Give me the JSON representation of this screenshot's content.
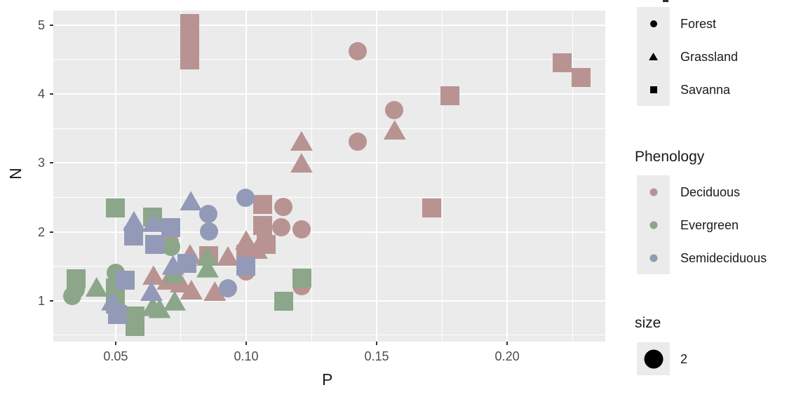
{
  "chart_data": {
    "type": "scatter",
    "title": "",
    "xlabel": "P",
    "ylabel": "N",
    "xlim": [
      0.0261,
      0.2376
    ],
    "ylim": [
      0.407,
      5.212
    ],
    "grid": true,
    "panel_bg": "#ebebeb",
    "grid_color": "#ffffff",
    "x_ticks": [
      {
        "value": 0.05,
        "label": "0.05"
      },
      {
        "value": 0.1,
        "label": "0.10"
      },
      {
        "value": 0.15,
        "label": "0.15"
      },
      {
        "value": 0.2,
        "label": "0.20"
      }
    ],
    "y_ticks": [
      {
        "value": 1,
        "label": "1"
      },
      {
        "value": 2,
        "label": "2"
      },
      {
        "value": 3,
        "label": "3"
      },
      {
        "value": 4,
        "label": "4"
      },
      {
        "value": 5,
        "label": "5"
      }
    ],
    "x_minor": [
      0.075,
      0.125,
      0.175,
      0.225
    ],
    "y_minor": [
      0.5,
      1.5,
      2.5,
      3.5,
      4.5
    ],
    "colors": {
      "Deciduous": "#b89392",
      "Evergreen": "#8ba689",
      "Semideciduous": "#939ab8",
      "legend_symbol": "#000000",
      "tick_text": "#4d4d4d",
      "text": "#1a1a1a"
    },
    "shape_legend": {
      "items": [
        {
          "label": "Forest",
          "shape": "circle"
        },
        {
          "label": "Grassland",
          "shape": "triangle"
        },
        {
          "label": "Savanna",
          "shape": "square"
        }
      ]
    },
    "phenology_legend": {
      "title": "Phenology",
      "items": [
        {
          "label": "Deciduous",
          "color": "#b89392"
        },
        {
          "label": "Evergreen",
          "color": "#8ba689"
        },
        {
          "label": "Semideciduous",
          "color": "#939ab8"
        }
      ]
    },
    "size_legend": {
      "title": "size",
      "items": [
        {
          "label": "2"
        }
      ]
    },
    "points": [
      {
        "p": 0.0785,
        "n": 5.02,
        "shape": "square",
        "phenology": "Deciduous"
      },
      {
        "p": 0.0785,
        "n": 4.75,
        "shape": "square",
        "phenology": "Deciduous"
      },
      {
        "p": 0.0785,
        "n": 4.49,
        "shape": "square",
        "phenology": "Deciduous"
      },
      {
        "p": 0.1427,
        "n": 4.62,
        "shape": "circle",
        "phenology": "Deciduous"
      },
      {
        "p": 0.221,
        "n": 4.45,
        "shape": "square",
        "phenology": "Deciduous"
      },
      {
        "p": 0.2282,
        "n": 4.24,
        "shape": "square",
        "phenology": "Deciduous"
      },
      {
        "p": 0.1782,
        "n": 3.98,
        "shape": "square",
        "phenology": "Deciduous"
      },
      {
        "p": 0.1567,
        "n": 3.77,
        "shape": "circle",
        "phenology": "Deciduous"
      },
      {
        "p": 0.1569,
        "n": 3.48,
        "shape": "triangle",
        "phenology": "Deciduous"
      },
      {
        "p": 0.1427,
        "n": 3.31,
        "shape": "circle",
        "phenology": "Deciduous"
      },
      {
        "p": 0.1212,
        "n": 3.32,
        "shape": "triangle",
        "phenology": "Deciduous"
      },
      {
        "p": 0.1212,
        "n": 3.0,
        "shape": "triangle",
        "phenology": "Deciduous"
      },
      {
        "p": 0.1712,
        "n": 2.35,
        "shape": "square",
        "phenology": "Deciduous"
      },
      {
        "p": 0.1062,
        "n": 2.4,
        "shape": "square",
        "phenology": "Deciduous"
      },
      {
        "p": 0.1062,
        "n": 2.09,
        "shape": "square",
        "phenology": "Deciduous"
      },
      {
        "p": 0.1142,
        "n": 2.36,
        "shape": "circle",
        "phenology": "Deciduous"
      },
      {
        "p": 0.1134,
        "n": 2.07,
        "shape": "circle",
        "phenology": "Deciduous"
      },
      {
        "p": 0.1213,
        "n": 2.04,
        "shape": "circle",
        "phenology": "Deciduous"
      },
      {
        "p": 0.1213,
        "n": 1.21,
        "shape": "circle",
        "phenology": "Deciduous"
      },
      {
        "p": 0.0645,
        "n": 1.37,
        "shape": "triangle",
        "phenology": "Deciduous"
      },
      {
        "p": 0.075,
        "n": 1.26,
        "shape": "triangle",
        "phenology": "Deciduous"
      },
      {
        "p": 0.079,
        "n": 1.16,
        "shape": "triangle",
        "phenology": "Deciduous"
      },
      {
        "p": 0.088,
        "n": 1.14,
        "shape": "triangle",
        "phenology": "Deciduous"
      },
      {
        "p": 0.1,
        "n": 1.42,
        "shape": "circle",
        "phenology": "Deciduous"
      },
      {
        "p": 0.1,
        "n": 1.67,
        "shape": "square",
        "phenology": "Deciduous"
      },
      {
        "p": 0.093,
        "n": 1.65,
        "shape": "triangle",
        "phenology": "Deciduous"
      },
      {
        "p": 0.1,
        "n": 1.88,
        "shape": "triangle",
        "phenology": "Deciduous"
      },
      {
        "p": 0.1076,
        "n": 1.82,
        "shape": "square",
        "phenology": "Deciduous"
      },
      {
        "p": 0.104,
        "n": 1.75,
        "shape": "triangle",
        "phenology": "Deciduous"
      },
      {
        "p": 0.0855,
        "n": 1.65,
        "shape": "square",
        "phenology": "Deciduous"
      },
      {
        "p": 0.0785,
        "n": 1.68,
        "shape": "triangle",
        "phenology": "Deciduous"
      },
      {
        "p": 0.0707,
        "n": 1.85,
        "shape": "circle",
        "phenology": "Deciduous"
      },
      {
        "p": 0.07,
        "n": 1.3,
        "shape": "triangle",
        "phenology": "Deciduous"
      },
      {
        "p": 0.05,
        "n": 2.35,
        "shape": "square",
        "phenology": "Evergreen"
      },
      {
        "p": 0.064,
        "n": 2.21,
        "shape": "square",
        "phenology": "Evergreen"
      },
      {
        "p": 0.0712,
        "n": 1.78,
        "shape": "circle",
        "phenology": "Evergreen"
      },
      {
        "p": 0.0723,
        "n": 1.39,
        "shape": "triangle",
        "phenology": "Evergreen"
      },
      {
        "p": 0.0726,
        "n": 1.0,
        "shape": "triangle",
        "phenology": "Evergreen"
      },
      {
        "p": 0.0852,
        "n": 1.48,
        "shape": "triangle",
        "phenology": "Evergreen"
      },
      {
        "p": 0.0852,
        "n": 1.65,
        "shape": "triangle",
        "phenology": "Evergreen"
      },
      {
        "p": 0.1145,
        "n": 0.99,
        "shape": "square",
        "phenology": "Evergreen"
      },
      {
        "p": 0.1213,
        "n": 1.33,
        "shape": "square",
        "phenology": "Evergreen"
      },
      {
        "p": 0.0347,
        "n": 1.32,
        "shape": "square",
        "phenology": "Evergreen"
      },
      {
        "p": 0.0347,
        "n": 1.16,
        "shape": "circle",
        "phenology": "Evergreen"
      },
      {
        "p": 0.0427,
        "n": 1.2,
        "shape": "triangle",
        "phenology": "Evergreen"
      },
      {
        "p": 0.0334,
        "n": 1.07,
        "shape": "circle",
        "phenology": "Evergreen"
      },
      {
        "p": 0.05,
        "n": 1.4,
        "shape": "circle",
        "phenology": "Evergreen"
      },
      {
        "p": 0.05,
        "n": 1.19,
        "shape": "square",
        "phenology": "Evergreen"
      },
      {
        "p": 0.05,
        "n": 0.95,
        "shape": "square",
        "phenology": "Evergreen"
      },
      {
        "p": 0.0573,
        "n": 0.63,
        "shape": "square",
        "phenology": "Evergreen"
      },
      {
        "p": 0.0642,
        "n": 0.92,
        "shape": "triangle",
        "phenology": "Evergreen"
      },
      {
        "p": 0.0668,
        "n": 0.89,
        "shape": "triangle",
        "phenology": "Evergreen"
      },
      {
        "p": 0.0573,
        "n": 0.78,
        "shape": "square",
        "phenology": "Evergreen"
      },
      {
        "p": 0.057,
        "n": 2.16,
        "shape": "triangle",
        "phenology": "Semideciduous"
      },
      {
        "p": 0.0645,
        "n": 2.14,
        "shape": "triangle",
        "phenology": "Semideciduous"
      },
      {
        "p": 0.057,
        "n": 1.94,
        "shape": "square",
        "phenology": "Semideciduous"
      },
      {
        "p": 0.0648,
        "n": 1.82,
        "shape": "square",
        "phenology": "Semideciduous"
      },
      {
        "p": 0.0788,
        "n": 2.45,
        "shape": "triangle",
        "phenology": "Semideciduous"
      },
      {
        "p": 0.0855,
        "n": 2.26,
        "shape": "circle",
        "phenology": "Semideciduous"
      },
      {
        "p": 0.0857,
        "n": 2.01,
        "shape": "circle",
        "phenology": "Semideciduous"
      },
      {
        "p": 0.0997,
        "n": 2.49,
        "shape": "circle",
        "phenology": "Semideciduous"
      },
      {
        "p": 0.0712,
        "n": 2.06,
        "shape": "square",
        "phenology": "Semideciduous"
      },
      {
        "p": 0.093,
        "n": 1.18,
        "shape": "circle",
        "phenology": "Semideciduous"
      },
      {
        "p": 0.1,
        "n": 1.5,
        "shape": "square",
        "phenology": "Semideciduous"
      },
      {
        "p": 0.0537,
        "n": 1.3,
        "shape": "square",
        "phenology": "Semideciduous"
      },
      {
        "p": 0.0637,
        "n": 1.14,
        "shape": "triangle",
        "phenology": "Semideciduous"
      },
      {
        "p": 0.0487,
        "n": 1.0,
        "shape": "triangle",
        "phenology": "Semideciduous"
      },
      {
        "p": 0.0508,
        "n": 0.8,
        "shape": "square",
        "phenology": "Semideciduous"
      },
      {
        "p": 0.072,
        "n": 1.52,
        "shape": "triangle",
        "phenology": "Semideciduous"
      },
      {
        "p": 0.0774,
        "n": 1.54,
        "shape": "square",
        "phenology": "Semideciduous"
      }
    ]
  }
}
